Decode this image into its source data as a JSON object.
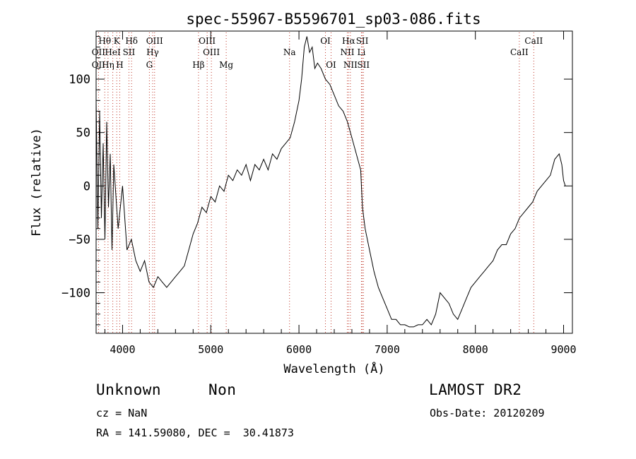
{
  "chart_data": {
    "type": "line",
    "title": "spec-55967-B5596701_sp03-086.fits",
    "xlabel": "Wavelength (Å)",
    "ylabel": "Flux (relative)",
    "xlim": [
      3700,
      9100
    ],
    "ylim": [
      -138,
      145
    ],
    "xticks": [
      4000,
      5000,
      6000,
      7000,
      8000,
      9000
    ],
    "yticks": [
      -100,
      -50,
      0,
      50,
      100
    ],
    "yticklabels": [
      "−100",
      "−50",
      "0",
      "50",
      "100"
    ],
    "grid": false,
    "line_color": "#000000",
    "marker_color": "#c0392b",
    "series": [
      {
        "x": [
          3700,
          3720,
          3740,
          3760,
          3780,
          3800,
          3820,
          3840,
          3860,
          3880,
          3900,
          3950,
          4000,
          4050,
          4100,
          4150,
          4200,
          4250,
          4300,
          4350,
          4400,
          4450,
          4500,
          4550,
          4600,
          4650,
          4700,
          4750,
          4800,
          4850,
          4900,
          4950,
          5000,
          5050,
          5100,
          5150,
          5200,
          5250,
          5300,
          5350,
          5400,
          5450,
          5500,
          5550,
          5600,
          5650,
          5700,
          5750,
          5800,
          5850,
          5900,
          5950,
          6000,
          6030,
          6060,
          6090,
          6120,
          6150,
          6180,
          6210,
          6250,
          6300,
          6350,
          6400,
          6450,
          6500,
          6550,
          6600,
          6650,
          6700,
          6720,
          6750,
          6800,
          6850,
          6900,
          6950,
          7000,
          7050,
          7100,
          7150,
          7200,
          7250,
          7300,
          7350,
          7400,
          7450,
          7500,
          7550,
          7600,
          7650,
          7700,
          7750,
          7800,
          7850,
          7900,
          7950,
          8000,
          8050,
          8100,
          8150,
          8200,
          8250,
          8300,
          8350,
          8400,
          8450,
          8500,
          8550,
          8600,
          8650,
          8700,
          8750,
          8800,
          8850,
          8900,
          8950,
          8980,
          9000,
          9020
        ],
        "y": [
          80,
          -40,
          70,
          -30,
          40,
          -50,
          60,
          -20,
          30,
          -60,
          20,
          -40,
          0,
          -60,
          -50,
          -70,
          -80,
          -70,
          -90,
          -95,
          -85,
          -90,
          -95,
          -90,
          -85,
          -80,
          -75,
          -60,
          -45,
          -35,
          -20,
          -25,
          -10,
          -15,
          0,
          -5,
          10,
          5,
          15,
          10,
          20,
          5,
          20,
          15,
          25,
          15,
          30,
          25,
          35,
          40,
          45,
          60,
          80,
          100,
          130,
          140,
          125,
          130,
          110,
          115,
          110,
          100,
          95,
          85,
          75,
          70,
          60,
          45,
          30,
          15,
          -20,
          -40,
          -60,
          -80,
          -95,
          -105,
          -115,
          -125,
          -125,
          -130,
          -130,
          -132,
          -132,
          -130,
          -130,
          -125,
          -130,
          -120,
          -100,
          -105,
          -110,
          -120,
          -125,
          -115,
          -105,
          -95,
          -90,
          -85,
          -80,
          -75,
          -70,
          -60,
          -55,
          -55,
          -45,
          -40,
          -30,
          -25,
          -20,
          -15,
          -5,
          0,
          5,
          10,
          25,
          30,
          20,
          5,
          0
        ]
      }
    ],
    "lines": [
      {
        "name": "OII",
        "wave": 3727,
        "row": 2
      },
      {
        "name": "OII",
        "wave": 3727,
        "row": 3
      },
      {
        "name": "Hθ",
        "wave": 3798,
        "row": 1
      },
      {
        "name": "Hη",
        "wave": 3835,
        "row": 3
      },
      {
        "name": "HeI",
        "wave": 3889,
        "row": 2
      },
      {
        "name": "K",
        "wave": 3934,
        "row": 1
      },
      {
        "name": "H",
        "wave": 3968,
        "row": 3
      },
      {
        "name": "SII",
        "wave": 4072,
        "row": 2
      },
      {
        "name": "Hδ",
        "wave": 4102,
        "row": 1
      },
      {
        "name": "OIII",
        "wave": 4363,
        "row": 1
      },
      {
        "name": "Hγ",
        "wave": 4341,
        "row": 2
      },
      {
        "name": "G",
        "wave": 4304,
        "row": 3
      },
      {
        "name": "Hβ",
        "wave": 4861,
        "row": 3
      },
      {
        "name": "OIII",
        "wave": 4959,
        "row": 1
      },
      {
        "name": "OIII",
        "wave": 5007,
        "row": 2
      },
      {
        "name": "Mg",
        "wave": 5175,
        "row": 3
      },
      {
        "name": "Na",
        "wave": 5893,
        "row": 2
      },
      {
        "name": "OI",
        "wave": 6300,
        "row": 1
      },
      {
        "name": "OI",
        "wave": 6364,
        "row": 3
      },
      {
        "name": "Hα",
        "wave": 6563,
        "row": 1
      },
      {
        "name": "NII",
        "wave": 6548,
        "row": 2
      },
      {
        "name": "NII",
        "wave": 6583,
        "row": 3
      },
      {
        "name": "SII",
        "wave": 6717,
        "row": 1
      },
      {
        "name": "SII",
        "wave": 6731,
        "row": 3
      },
      {
        "name": "Li",
        "wave": 6708,
        "row": 2
      },
      {
        "name": "CaII",
        "wave": 8498,
        "row": 2
      },
      {
        "name": "CaII",
        "wave": 8662,
        "row": 1
      }
    ]
  },
  "info": {
    "object_type": "Unknown",
    "subclass": "Non",
    "survey": "LAMOST DR2",
    "redshift": "cz = NaN",
    "obs_date": "Obs-Date: 20120209",
    "coords": "RA = 141.59080, DEC =  30.41873"
  }
}
